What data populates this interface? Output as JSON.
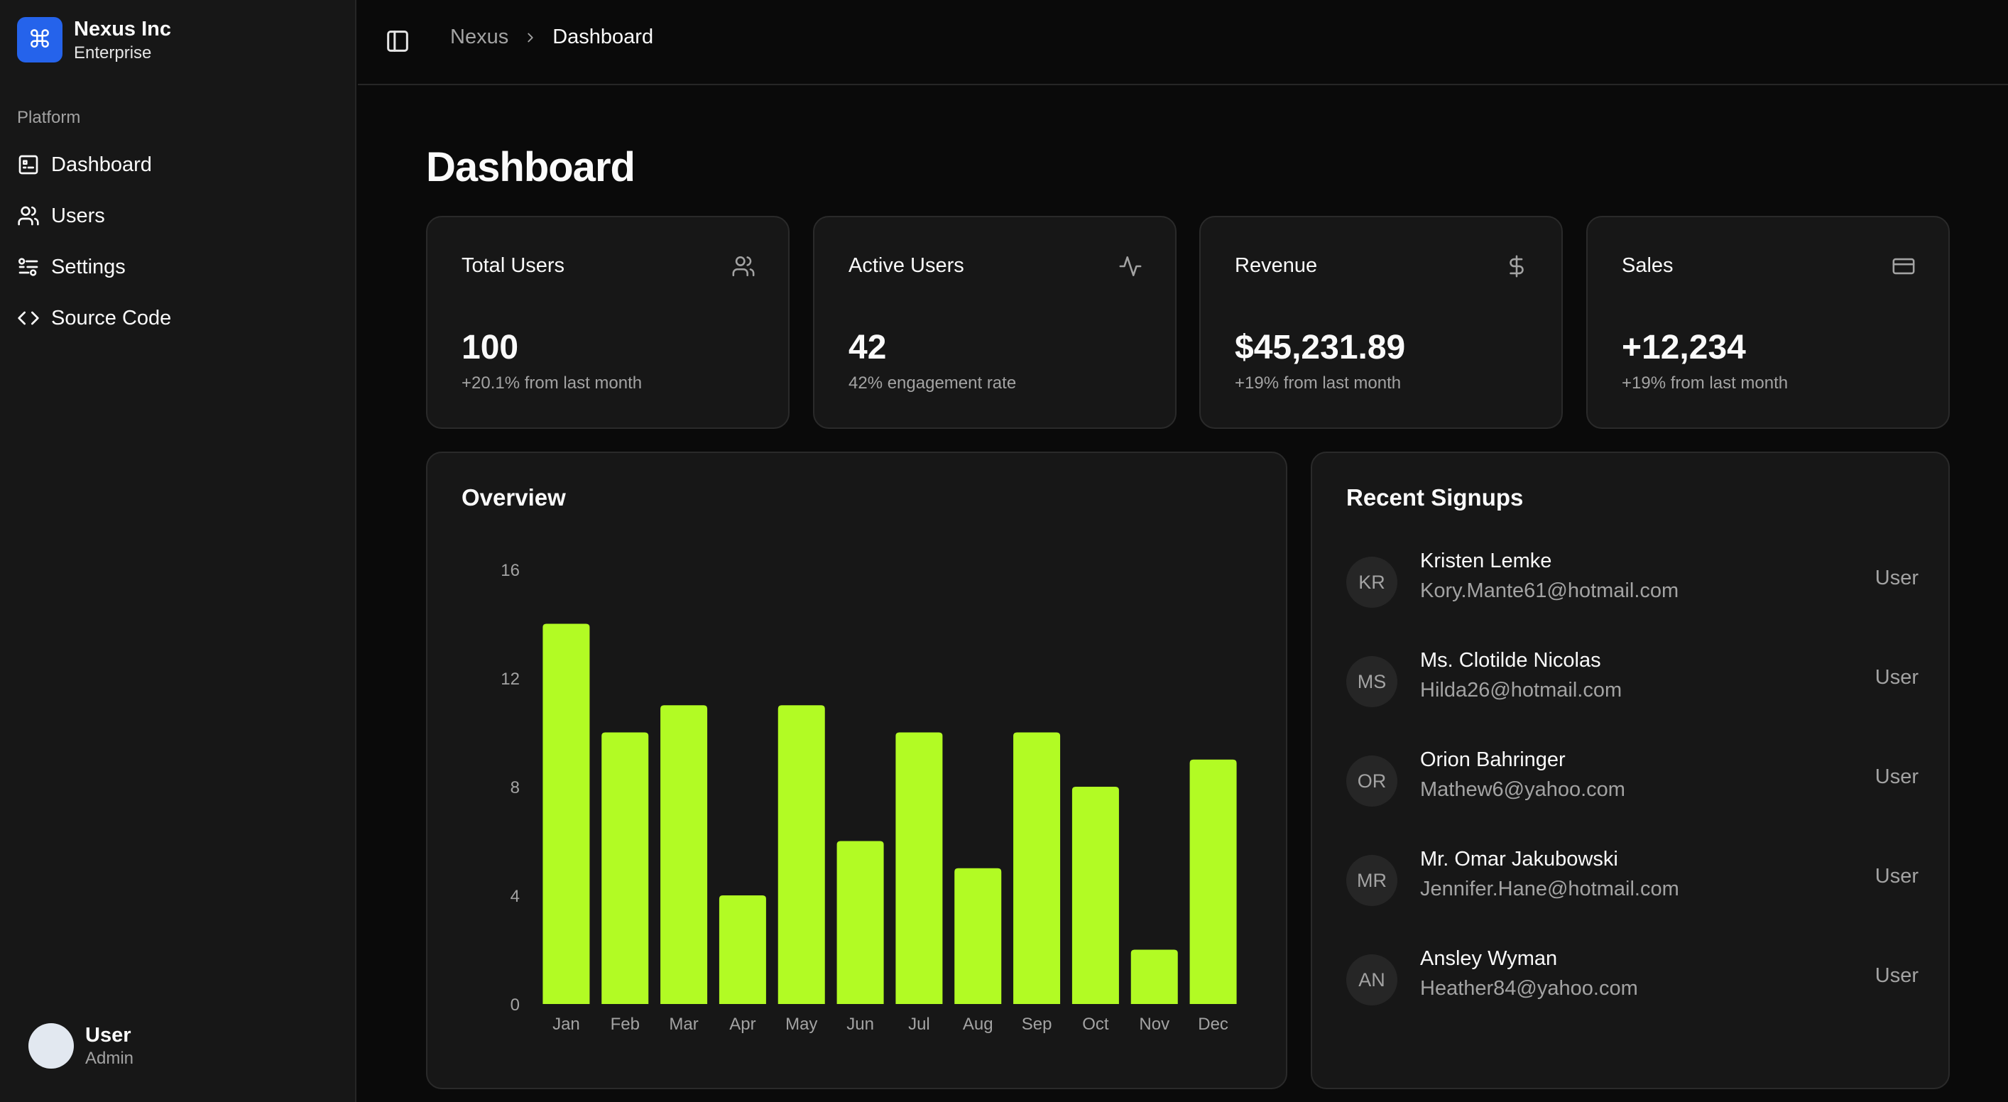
{
  "brand": {
    "name": "Nexus Inc",
    "plan": "Enterprise",
    "logo_icon": "command-icon"
  },
  "sidebar": {
    "group_label": "Platform",
    "items": [
      {
        "label": "Dashboard",
        "icon": "dashboard-icon"
      },
      {
        "label": "Users",
        "icon": "users-icon"
      },
      {
        "label": "Settings",
        "icon": "settings-icon"
      },
      {
        "label": "Source Code",
        "icon": "code-icon"
      }
    ],
    "user": {
      "name": "User",
      "role": "Admin"
    }
  },
  "header": {
    "breadcrumb": {
      "root": "Nexus",
      "current": "Dashboard"
    }
  },
  "main": {
    "title": "Dashboard",
    "stats": [
      {
        "title": "Total Users",
        "value": "100",
        "sub": "+20.1% from last month",
        "icon": "users-icon"
      },
      {
        "title": "Active Users",
        "value": "42",
        "sub": "42% engagement rate",
        "icon": "activity-icon"
      },
      {
        "title": "Revenue",
        "value": "$45,231.89",
        "sub": "+19% from last month",
        "icon": "dollar-icon"
      },
      {
        "title": "Sales",
        "value": "+12,234",
        "sub": "+19% from last month",
        "icon": "credit-card-icon"
      }
    ],
    "overview": {
      "title": "Overview"
    },
    "signups": {
      "title": "Recent Signups",
      "rows": [
        {
          "initials": "KR",
          "name": "Kristen Lemke",
          "email": "Kory.Mante61@hotmail.com",
          "role": "User"
        },
        {
          "initials": "MS",
          "name": "Ms. Clotilde Nicolas",
          "email": "Hilda26@hotmail.com",
          "role": "User"
        },
        {
          "initials": "OR",
          "name": "Orion Bahringer",
          "email": "Mathew6@yahoo.com",
          "role": "User"
        },
        {
          "initials": "MR",
          "name": "Mr. Omar Jakubowski",
          "email": "Jennifer.Hane@hotmail.com",
          "role": "User"
        },
        {
          "initials": "AN",
          "name": "Ansley Wyman",
          "email": "Heather84@yahoo.com",
          "role": "User"
        }
      ]
    }
  },
  "colors": {
    "bar": "#b2fb24",
    "accent": "#2563eb",
    "background": "#0a0a0a",
    "card": "#171717"
  },
  "chart_data": {
    "type": "bar",
    "categories": [
      "Jan",
      "Feb",
      "Mar",
      "Apr",
      "May",
      "Jun",
      "Jul",
      "Aug",
      "Sep",
      "Oct",
      "Nov",
      "Dec"
    ],
    "values": [
      14,
      10,
      11,
      4,
      11,
      6,
      10,
      5,
      10,
      8,
      2,
      9
    ],
    "yticks": [
      0,
      4,
      8,
      12,
      16
    ],
    "ylim": [
      0,
      16
    ],
    "title": "",
    "xlabel": "",
    "ylabel": "",
    "grid": false
  }
}
